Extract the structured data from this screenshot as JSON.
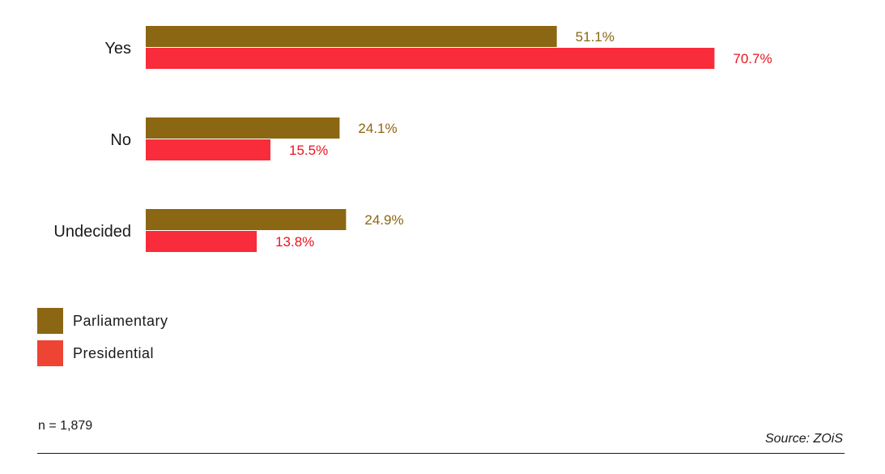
{
  "chart_data": {
    "type": "bar",
    "orientation": "horizontal",
    "categories": [
      "Yes",
      "No",
      "Undecided"
    ],
    "series": [
      {
        "name": "Parliamentary",
        "values": [
          51.1,
          24.1,
          24.9
        ],
        "labels": [
          "51.1%",
          "24.1%",
          "24.9%"
        ],
        "color": "#8b6613",
        "label_color": "#8b6613"
      },
      {
        "name": "Presidential",
        "values": [
          70.7,
          15.5,
          13.8
        ],
        "labels": [
          "70.7%",
          "15.5%",
          "13.8%"
        ],
        "color": "#f82c3a",
        "label_color": "#e8141f"
      }
    ],
    "xlim": [
      0,
      100
    ],
    "grid": false,
    "legend_position": "bottom-left"
  },
  "legend": {
    "items": [
      {
        "label": "Parliamentary",
        "color": "#8b6613"
      },
      {
        "label": "Presidential",
        "color": "#ee4433"
      }
    ]
  },
  "footer": {
    "note": "n = 1,879",
    "source": "Source: ZOiS"
  }
}
